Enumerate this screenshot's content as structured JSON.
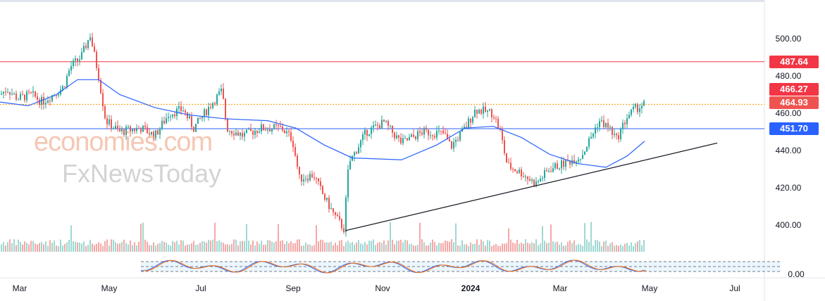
{
  "chart_data": {
    "type": "candlestick",
    "ylim": [
      385,
      510
    ],
    "y_ticks": [
      "500.00",
      "480.00",
      "460.00",
      "440.00",
      "420.00",
      "400.00"
    ],
    "osc_tick": "0.00",
    "x_ticks": [
      "Mar",
      "May",
      "Jul",
      "Sep",
      "Nov",
      "2024",
      "Mar",
      "May",
      "Jul"
    ],
    "key_closes": [
      [
        0,
        470
      ],
      [
        10,
        473
      ],
      [
        25,
        468
      ],
      [
        45,
        470
      ],
      [
        60,
        466
      ],
      [
        75,
        470
      ],
      [
        90,
        474
      ],
      [
        100,
        485
      ],
      [
        115,
        490
      ],
      [
        128,
        502
      ],
      [
        140,
        480
      ],
      [
        150,
        456
      ],
      [
        170,
        450
      ],
      [
        200,
        452
      ],
      [
        220,
        448
      ],
      [
        240,
        460
      ],
      [
        260,
        462
      ],
      [
        275,
        452
      ],
      [
        300,
        465
      ],
      [
        315,
        472
      ],
      [
        322,
        452
      ],
      [
        345,
        448
      ],
      [
        370,
        452
      ],
      [
        400,
        452
      ],
      [
        415,
        446
      ],
      [
        425,
        425
      ],
      [
        445,
        427
      ],
      [
        460,
        415
      ],
      [
        475,
        405
      ],
      [
        488,
        398
      ],
      [
        495,
        433
      ],
      [
        520,
        450
      ],
      [
        545,
        455
      ],
      [
        570,
        444
      ],
      [
        600,
        450
      ],
      [
        630,
        449
      ],
      [
        640,
        442
      ],
      [
        660,
        452
      ],
      [
        675,
        462
      ],
      [
        700,
        460
      ],
      [
        710,
        450
      ],
      [
        720,
        432
      ],
      [
        740,
        428
      ],
      [
        760,
        422
      ],
      [
        780,
        430
      ],
      [
        800,
        433
      ],
      [
        825,
        437
      ],
      [
        840,
        448
      ],
      [
        850,
        456
      ],
      [
        865,
        452
      ],
      [
        875,
        446
      ],
      [
        890,
        458
      ],
      [
        900,
        462
      ],
      [
        915,
        465
      ]
    ],
    "ma_points": [
      [
        0,
        466
      ],
      [
        40,
        464
      ],
      [
        80,
        470
      ],
      [
        110,
        478
      ],
      [
        140,
        478
      ],
      [
        170,
        470
      ],
      [
        220,
        463
      ],
      [
        270,
        459
      ],
      [
        320,
        457
      ],
      [
        380,
        456
      ],
      [
        420,
        452
      ],
      [
        460,
        443
      ],
      [
        500,
        436
      ],
      [
        570,
        435
      ],
      [
        620,
        443
      ],
      [
        660,
        452
      ],
      [
        700,
        453
      ],
      [
        740,
        447
      ],
      [
        780,
        438
      ],
      [
        820,
        433
      ],
      [
        860,
        431
      ],
      [
        890,
        437
      ],
      [
        915,
        445
      ]
    ],
    "levels": [
      {
        "value": 487.64,
        "label": "487.64",
        "color": "#f23645",
        "style": "solid"
      },
      {
        "value": 466.27,
        "label": "466.27",
        "color": "#f23645",
        "style": "dotted"
      },
      {
        "value": 464.93,
        "label": "464.93",
        "color": "#ef5350",
        "style": "none"
      },
      {
        "value": 451.7,
        "label": "451.70",
        "color": "#2962ff",
        "style": "solid"
      }
    ],
    "trendline": [
      [
        490,
        397
      ],
      [
        1018,
        444
      ]
    ]
  },
  "watermark": {
    "line1": "economies.com",
    "line2": "FxNewsToday"
  }
}
